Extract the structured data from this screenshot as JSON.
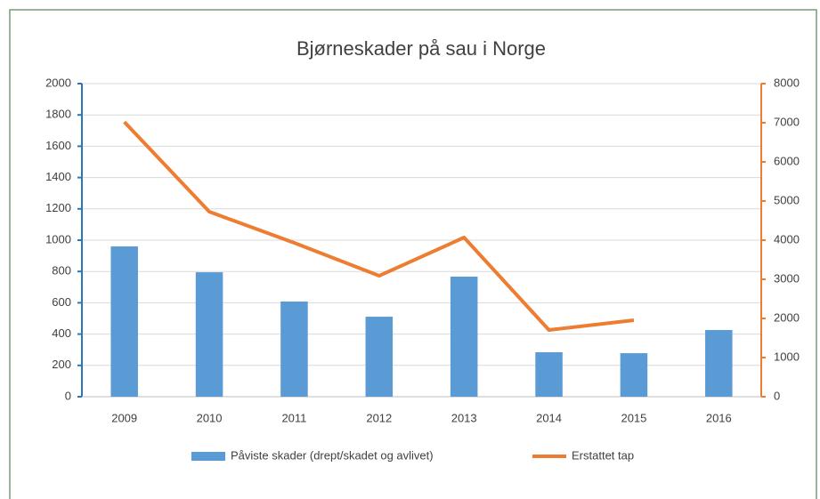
{
  "chart_data": {
    "type": "bar",
    "title": "Bjørneskader på sau i Norge",
    "categories": [
      "2009",
      "2010",
      "2011",
      "2012",
      "2013",
      "2014",
      "2015",
      "2016"
    ],
    "series": [
      {
        "name": "Påviste skader (drept/skadet og avlivet)",
        "type": "bar",
        "color": "#5b9bd5",
        "axis": "y",
        "values": [
          960,
          795,
          608,
          511,
          767,
          284,
          278,
          426
        ]
      },
      {
        "name": "Erstattet tap",
        "type": "line",
        "color": "#ed7d31",
        "axis": "y2",
        "values": [
          7020,
          4727,
          3932,
          3090,
          4068,
          1705,
          1955,
          null
        ]
      }
    ],
    "ylim": [
      0,
      2000
    ],
    "yticks": [
      0,
      200,
      400,
      600,
      800,
      1000,
      1200,
      1400,
      1600,
      1800,
      2000
    ],
    "y2lim": [
      0,
      8000
    ],
    "y2ticks": [
      0,
      1000,
      2000,
      3000,
      4000,
      5000,
      6000,
      7000,
      8000
    ],
    "grid": true,
    "legend": "bottom"
  }
}
